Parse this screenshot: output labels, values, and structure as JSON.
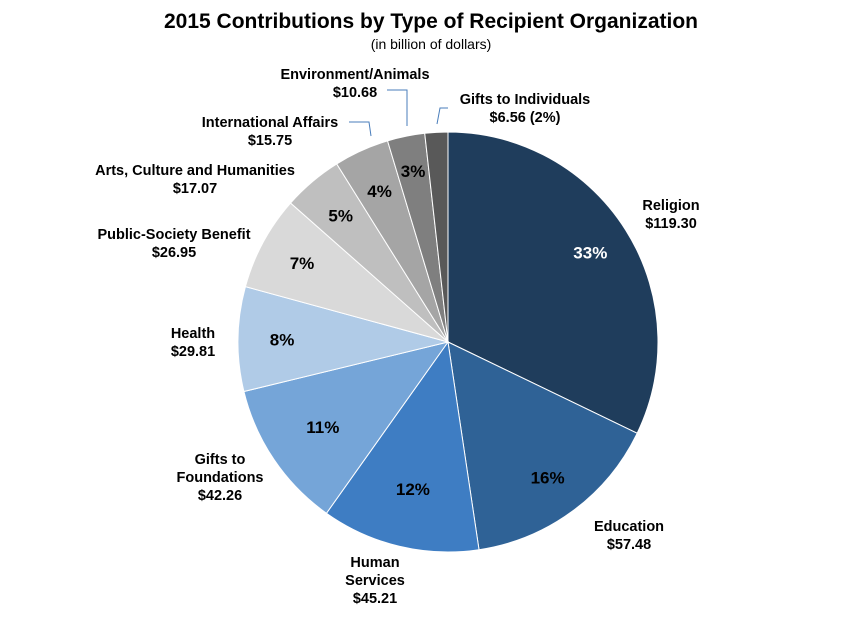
{
  "chart_data": {
    "type": "pie",
    "title": "2015 Contributions by Type of Recipient Organization",
    "subtitle": "(in billion of dollars)",
    "start": "12 o'clock",
    "direction": "clockwise",
    "slices": [
      {
        "label_lines": [
          "Religion",
          "$119.30"
        ],
        "value": 119.3,
        "pct_label": "33%",
        "color": "#1f3d5c",
        "pct_color": "#ffffff"
      },
      {
        "label_lines": [
          "Education",
          "$57.48"
        ],
        "value": 57.48,
        "pct_label": "16%",
        "color": "#2f6296",
        "pct_color": "#000000"
      },
      {
        "label_lines": [
          "Human",
          "Services",
          "$45.21"
        ],
        "value": 45.21,
        "pct_label": "12%",
        "color": "#3e7dc3",
        "pct_color": "#000000"
      },
      {
        "label_lines": [
          "Gifts to",
          "Foundations",
          "$42.26"
        ],
        "value": 42.26,
        "pct_label": "11%",
        "color": "#75a5d8",
        "pct_color": "#000000"
      },
      {
        "label_lines": [
          "Health",
          "$29.81"
        ],
        "value": 29.81,
        "pct_label": "8%",
        "color": "#b0cbe7",
        "pct_color": "#000000"
      },
      {
        "label_lines": [
          "Public-Society Benefit",
          "$26.95"
        ],
        "value": 26.95,
        "pct_label": "7%",
        "color": "#d9d9d9",
        "pct_color": "#000000"
      },
      {
        "label_lines": [
          "Arts, Culture and Humanities",
          "$17.07"
        ],
        "value": 17.07,
        "pct_label": "5%",
        "color": "#bfbfbf",
        "pct_color": "#000000"
      },
      {
        "label_lines": [
          "International Affairs",
          "$15.75"
        ],
        "value": 15.75,
        "pct_label": "4%",
        "color": "#a5a5a5",
        "pct_color": "#000000"
      },
      {
        "label_lines": [
          "Environment/Animals",
          "$10.68"
        ],
        "value": 10.68,
        "pct_label": "3%",
        "color": "#7f7f7f",
        "pct_color": "#000000"
      },
      {
        "label_lines": [
          "Gifts to Individuals",
          "$6.56 (2%)"
        ],
        "value": 6.56,
        "pct_label": "",
        "color": "#595959",
        "pct_color": "#000000"
      }
    ]
  }
}
